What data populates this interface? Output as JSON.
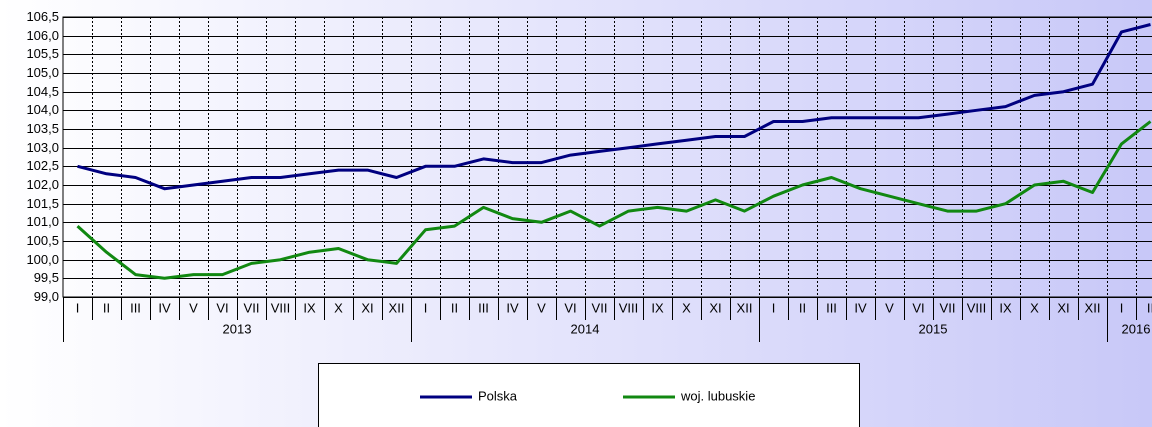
{
  "chart_data": {
    "type": "line",
    "categories": [
      "I",
      "II",
      "III",
      "IV",
      "V",
      "VI",
      "VII",
      "VIII",
      "IX",
      "X",
      "XI",
      "XII",
      "I",
      "II",
      "III",
      "IV",
      "V",
      "VI",
      "VII",
      "VIII",
      "IX",
      "X",
      "XI",
      "XII",
      "I",
      "II",
      "III",
      "IV",
      "V",
      "VI",
      "VII",
      "VIII",
      "IX",
      "X",
      "XI",
      "XII",
      "I",
      "II"
    ],
    "category_groups": [
      "2013",
      "2014",
      "2015",
      "2016"
    ],
    "series": [
      {
        "name": "Polska",
        "color": "#000080",
        "values": [
          102.5,
          102.3,
          102.2,
          101.9,
          102.0,
          102.1,
          102.2,
          102.2,
          102.3,
          102.4,
          102.4,
          102.2,
          102.5,
          102.5,
          102.7,
          102.6,
          102.6,
          102.8,
          102.9,
          103.0,
          103.1,
          103.2,
          103.3,
          103.3,
          103.7,
          103.7,
          103.8,
          103.8,
          103.8,
          103.8,
          103.9,
          104.0,
          104.1,
          104.4,
          104.5,
          104.7,
          106.1,
          106.3
        ]
      },
      {
        "name": "woj. lubuskie",
        "color": "#118811",
        "values": [
          100.9,
          100.2,
          99.6,
          99.5,
          99.6,
          99.6,
          99.9,
          100.0,
          100.2,
          100.3,
          100.0,
          99.9,
          100.8,
          100.9,
          101.4,
          101.1,
          101.0,
          101.3,
          100.9,
          101.3,
          101.4,
          101.3,
          101.6,
          101.3,
          101.7,
          102.0,
          102.2,
          101.9,
          101.7,
          101.5,
          101.3,
          101.3,
          101.5,
          102.0,
          102.1,
          101.8,
          103.1,
          103.7
        ]
      }
    ],
    "ylim": [
      99.0,
      106.5
    ],
    "yticks": [
      {
        "value": 99.0,
        "label": "99,0"
      },
      {
        "value": 99.5,
        "label": "99,5"
      },
      {
        "value": 100.0,
        "label": "100,0"
      },
      {
        "value": 100.5,
        "label": "100,5"
      },
      {
        "value": 101.0,
        "label": "101,0"
      },
      {
        "value": 101.5,
        "label": "101,5"
      },
      {
        "value": 102.0,
        "label": "102,0"
      },
      {
        "value": 102.5,
        "label": "102,5"
      },
      {
        "value": 103.0,
        "label": "103,0"
      },
      {
        "value": 103.5,
        "label": "103,5"
      },
      {
        "value": 104.0,
        "label": "104,0"
      },
      {
        "value": 104.5,
        "label": "104,5"
      },
      {
        "value": 105.0,
        "label": "105,0"
      },
      {
        "value": 105.5,
        "label": "105,5"
      },
      {
        "value": 106.0,
        "label": "106,0"
      },
      {
        "value": 106.5,
        "label": "106,5"
      }
    ],
    "grid": true
  }
}
